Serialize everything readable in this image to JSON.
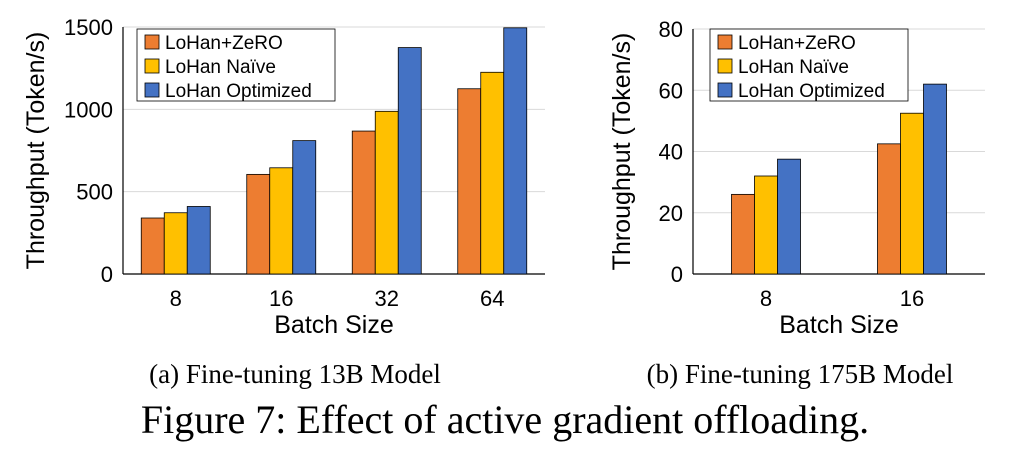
{
  "figure_caption": "Figure 7: Effect of active gradient offloading.",
  "colors": {
    "LoHan+ZeRO": "#ED7D31",
    "LoHan Naïve": "#FFC000",
    "LoHan Optimized": "#4472C4",
    "grid": "#d9d9d9",
    "axis": "#000000"
  },
  "chart_data": [
    {
      "type": "bar",
      "caption": "(a) Fine-tuning 13B Model",
      "xlabel": "Batch Size",
      "ylabel": "Throughput (Token/s)",
      "ylim": [
        0,
        1500
      ],
      "yticks": [
        0,
        500,
        1000,
        1500
      ],
      "grid": true,
      "legend_position": "top-left",
      "categories": [
        "8",
        "16",
        "32",
        "64"
      ],
      "series": [
        {
          "name": "LoHan+ZeRO",
          "values": [
            340,
            605,
            868,
            1125
          ]
        },
        {
          "name": "LoHan Naïve",
          "values": [
            372,
            645,
            988,
            1225
          ]
        },
        {
          "name": "LoHan Optimized",
          "values": [
            410,
            810,
            1375,
            1495
          ]
        }
      ]
    },
    {
      "type": "bar",
      "caption": "(b) Fine-tuning 175B Model",
      "xlabel": "Batch Size",
      "ylabel": "Throughput (Token/s)",
      "ylim": [
        0,
        80
      ],
      "yticks": [
        0,
        20,
        40,
        60,
        80
      ],
      "grid": true,
      "legend_position": "top-left",
      "categories": [
        "8",
        "16"
      ],
      "series": [
        {
          "name": "LoHan+ZeRO",
          "values": [
            26,
            42.5
          ]
        },
        {
          "name": "LoHan Naïve",
          "values": [
            32,
            52.5
          ]
        },
        {
          "name": "LoHan Optimized",
          "values": [
            37.5,
            62
          ]
        }
      ]
    }
  ]
}
